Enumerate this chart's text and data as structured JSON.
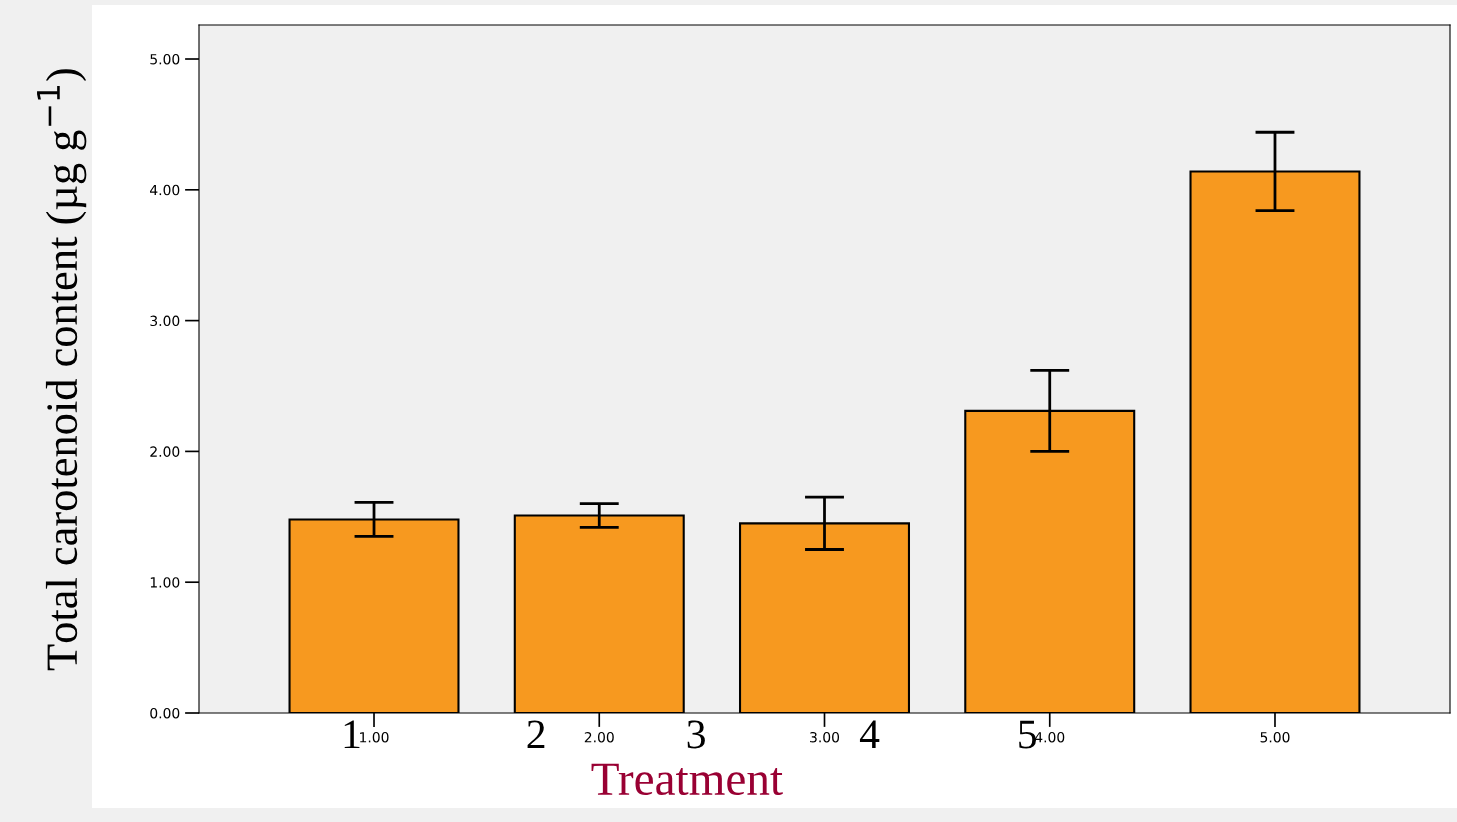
{
  "chart_data": {
    "type": "bar",
    "xlabel": "Treatment",
    "ylabel": "Total carotenoid content (µg g$^{−1}$)",
    "categories": [
      "1.00",
      "2.00",
      "3.00",
      "4.00",
      "5.00"
    ],
    "series": [
      {
        "color": "#f7991f",
        "values": [
          1.48,
          1.51,
          1.45,
          2.31,
          4.14
        ],
        "errors": [
          0.13,
          0.09,
          0.2,
          0.31,
          0.3
        ]
      }
    ],
    "ylim": [
      0,
      5.26
    ],
    "yticks": [
      {
        "value": 0,
        "label": "0.00"
      },
      {
        "value": 1,
        "label": "1.00"
      },
      {
        "value": 2,
        "label": "2.00"
      },
      {
        "value": 3,
        "label": "3.00"
      },
      {
        "value": 4,
        "label": "4.00"
      },
      {
        "value": 5,
        "label": "5.00"
      }
    ],
    "annotations": [
      "1",
      "2",
      "3",
      "4",
      "5"
    ],
    "grid": false,
    "legend": false
  }
}
